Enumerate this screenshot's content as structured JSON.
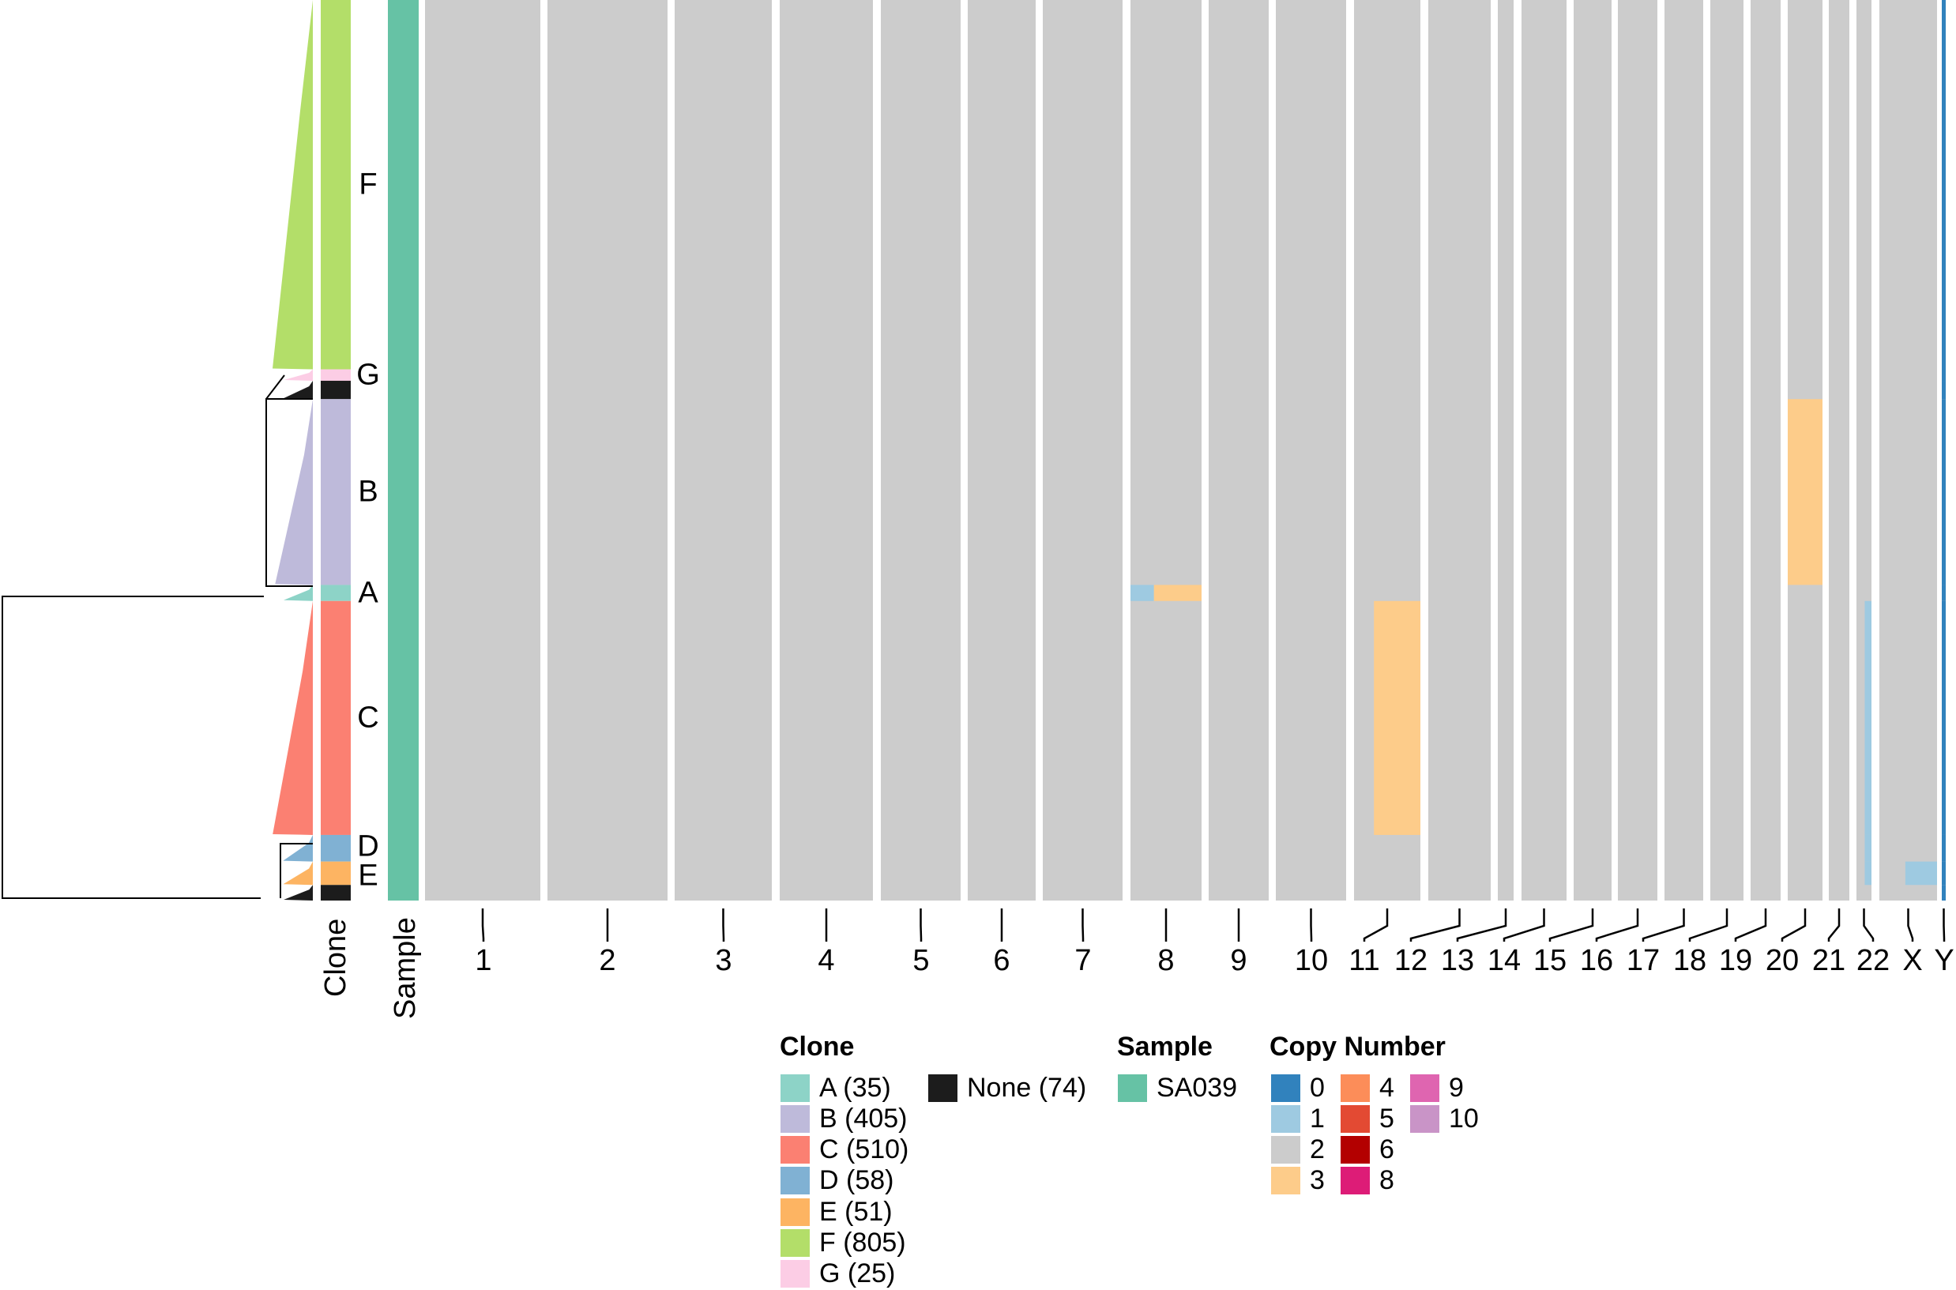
{
  "chart_data": {
    "type": "heatmap",
    "title": "",
    "row_annotations": {
      "clone_label": "Clone",
      "sample_label": "Sample"
    },
    "chromosomes": [
      "1",
      "2",
      "3",
      "4",
      "5",
      "6",
      "7",
      "8",
      "9",
      "10",
      "11",
      "12",
      "13",
      "14",
      "15",
      "16",
      "17",
      "18",
      "19",
      "20",
      "21",
      "22",
      "X",
      "Y"
    ],
    "clones": [
      {
        "label": "A",
        "count": 35,
        "legend": "A (35)",
        "color": "#8DD3C7"
      },
      {
        "label": "B",
        "count": 405,
        "legend": "B (405)",
        "color": "#BEBADA"
      },
      {
        "label": "C",
        "count": 510,
        "legend": "C (510)",
        "color": "#FB8072"
      },
      {
        "label": "D",
        "count": 58,
        "legend": "D (58)",
        "color": "#80B1D3"
      },
      {
        "label": "E",
        "count": 51,
        "legend": "E (51)",
        "color": "#FDB462"
      },
      {
        "label": "F",
        "count": 805,
        "legend": "F (805)",
        "color": "#B3DE69"
      },
      {
        "label": "G",
        "count": 25,
        "legend": "G (25)",
        "color": "#FCCDE5"
      },
      {
        "label": "None",
        "count": 74,
        "legend": "None (74)",
        "color": "#1C1C1C"
      }
    ],
    "clone_display_order": [
      "F",
      "G",
      "None",
      "B",
      "A",
      "C",
      "D",
      "E",
      "None"
    ],
    "samples": [
      {
        "label": "SA039",
        "color": "#66C2A5"
      }
    ],
    "copy_number_states": [
      {
        "label": "0",
        "color": "#3182BD"
      },
      {
        "label": "1",
        "color": "#9ECAE1"
      },
      {
        "label": "2",
        "color": "#CCCCCC"
      },
      {
        "label": "3",
        "color": "#FDCC8A"
      },
      {
        "label": "4",
        "color": "#FC8D59"
      },
      {
        "label": "5",
        "color": "#E34A33"
      },
      {
        "label": "6",
        "color": "#B30000"
      },
      {
        "label": "8",
        "color": "#DD1C77"
      },
      {
        "label": "9",
        "color": "#DF65B0"
      },
      {
        "label": "10",
        "color": "#C994C7"
      }
    ],
    "baseline_state": "2",
    "events": [
      {
        "clones": [
          "B"
        ],
        "chromosome": "20",
        "arm": "whole",
        "state": "3"
      },
      {
        "clones": [
          "A"
        ],
        "chromosome": "8",
        "arm": "p",
        "state": "1"
      },
      {
        "clones": [
          "A"
        ],
        "chromosome": "8",
        "arm": "q",
        "state": "3"
      },
      {
        "clones": [
          "C"
        ],
        "chromosome": "11",
        "arm": "q",
        "state": "3"
      },
      {
        "clones": [
          "C",
          "D",
          "E"
        ],
        "chromosome": "22",
        "arm": "q",
        "state": "1"
      },
      {
        "clones": [
          "F",
          "G",
          "None",
          "B",
          "A",
          "C",
          "D",
          "E"
        ],
        "chromosome": "Y",
        "arm": "whole",
        "state": "0"
      },
      {
        "clones": [
          "E"
        ],
        "chromosome": "X",
        "arm": "q",
        "state": "1"
      }
    ],
    "legend": {
      "clone_title": "Clone",
      "sample_title": "Sample",
      "cn_title": "Copy Number",
      "placement": "bottom"
    }
  }
}
